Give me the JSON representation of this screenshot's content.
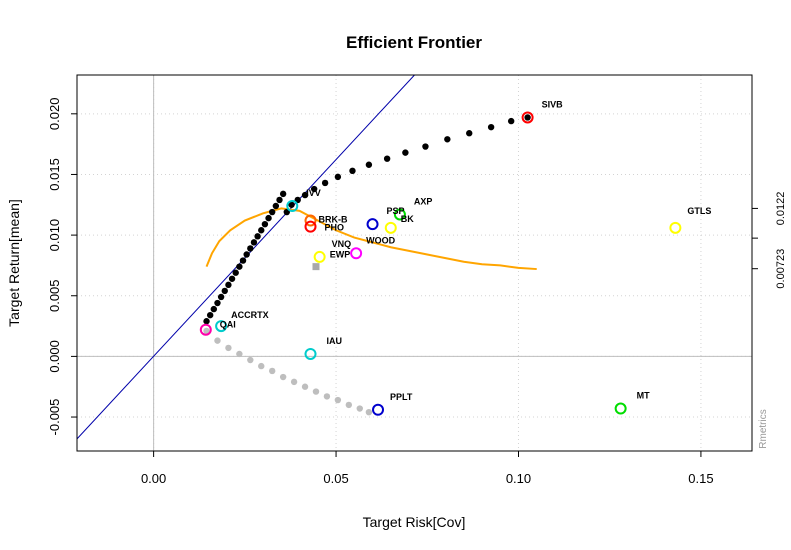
{
  "chart_data": {
    "type": "scatter",
    "title": "Efficient Frontier",
    "xlabel": "Target Risk[Cov]",
    "ylabel": "Target Return[mean]",
    "xlim": [
      -0.021,
      0.164
    ],
    "ylim": [
      -0.0078,
      0.0232
    ],
    "x_ticks": [
      0.0,
      0.05,
      0.1,
      0.15
    ],
    "x_tick_labels": [
      "0.00",
      "0.05",
      "0.10",
      "0.15"
    ],
    "y_ticks": [
      -0.005,
      0.0,
      0.005,
      0.01,
      0.015,
      0.02
    ],
    "y_tick_labels": [
      "-0.005",
      "0.000",
      "0.005",
      "0.010",
      "0.015",
      "0.020"
    ],
    "right_axis_ticks": [
      0.0122,
      0.00975,
      0.00723
    ],
    "right_axis_labels": [
      "0.0122",
      "",
      "0.00723"
    ],
    "credit": "Rmetrics",
    "grid": true,
    "zero_lines": true,
    "tangency_line": {
      "points": [
        [
          -0.021,
          -0.0068
        ],
        [
          0.0715,
          0.0232
        ]
      ],
      "color": "#0000aa"
    },
    "sharpe_ratio_curve": {
      "color": "#ffa500",
      "x": [
        0.0145,
        0.016,
        0.018,
        0.021,
        0.025,
        0.03,
        0.035,
        0.04,
        0.045,
        0.05,
        0.055,
        0.06,
        0.065,
        0.07,
        0.075,
        0.08,
        0.085,
        0.09,
        0.095,
        0.1,
        0.105
      ],
      "y": [
        0.0074,
        0.0085,
        0.0095,
        0.0104,
        0.0112,
        0.0118,
        0.0122,
        0.012,
        0.0112,
        0.0104,
        0.0098,
        0.0094,
        0.009,
        0.0087,
        0.0084,
        0.0081,
        0.0078,
        0.0076,
        0.0075,
        0.0073,
        0.0072
      ]
    },
    "efficient_frontier": {
      "color": "#000000",
      "x": [
        0.0145,
        0.0155,
        0.0165,
        0.0175,
        0.0185,
        0.0195,
        0.0205,
        0.0215,
        0.0225,
        0.0235,
        0.0245,
        0.0255,
        0.0265,
        0.0275,
        0.0285,
        0.0295,
        0.0305,
        0.0315,
        0.0325,
        0.0335,
        0.0345,
        0.0355,
        0.0365,
        0.0378,
        0.0395,
        0.0415,
        0.044,
        0.047,
        0.0505,
        0.0545,
        0.059,
        0.064,
        0.069,
        0.0745,
        0.0805,
        0.0865,
        0.0925,
        0.098,
        0.1025
      ],
      "y": [
        0.0029,
        0.0034,
        0.0039,
        0.0044,
        0.0049,
        0.0054,
        0.0059,
        0.0064,
        0.0069,
        0.0074,
        0.0079,
        0.0084,
        0.0089,
        0.0094,
        0.0099,
        0.0104,
        0.0109,
        0.0114,
        0.0119,
        0.0124,
        0.0129,
        0.0134,
        0.0119,
        0.0125,
        0.0129,
        0.0133,
        0.0138,
        0.0143,
        0.0148,
        0.0153,
        0.0158,
        0.0163,
        0.0168,
        0.0173,
        0.0179,
        0.0184,
        0.0189,
        0.0194,
        0.0197
      ]
    },
    "minimum_variance_locus": {
      "color": "#bebebe",
      "x": [
        0.0145,
        0.0175,
        0.0205,
        0.0235,
        0.0265,
        0.0295,
        0.0325,
        0.0355,
        0.0385,
        0.0415,
        0.0445,
        0.0475,
        0.0505,
        0.0535,
        0.0565,
        0.059
      ],
      "y": [
        0.0021,
        0.0013,
        0.0007,
        0.0002,
        -0.0003,
        -0.0008,
        -0.0012,
        -0.0017,
        -0.0021,
        -0.0025,
        -0.0029,
        -0.0033,
        -0.0036,
        -0.004,
        -0.0043,
        -0.0046
      ]
    },
    "equal_weights_point": {
      "x": 0.0445,
      "y": 0.0074,
      "color": "#a9a9a9"
    },
    "assets": [
      {
        "name": "SIVB",
        "x": 0.1025,
        "y": 0.0197,
        "color": "#ff0000"
      },
      {
        "name": "GTLS",
        "x": 0.143,
        "y": 0.0106,
        "color": "#ffff00"
      },
      {
        "name": "AXP",
        "x": 0.0675,
        "y": 0.0117,
        "color": "#00dd00"
      },
      {
        "name": "PSP",
        "x": 0.06,
        "y": 0.0109,
        "color": "#0000cd"
      },
      {
        "name": "BK",
        "x": 0.065,
        "y": 0.0106,
        "color": "#ffff00"
      },
      {
        "name": "WOOD",
        "x": 0.0555,
        "y": 0.0085,
        "color": "#ff00ff"
      },
      {
        "name": "IVV",
        "x": 0.038,
        "y": 0.0124,
        "color": "#00cccc"
      },
      {
        "name": "BRK-B",
        "x": 0.043,
        "y": 0.0112,
        "color": "#ff6600"
      },
      {
        "name": "PHO",
        "x": 0.043,
        "y": 0.0107,
        "color": "#ff0000"
      },
      {
        "name": "VNQ",
        "x": 0.0455,
        "y": 0.0082,
        "color": "#ffff00"
      },
      {
        "name": "EWP",
        "x": 0.045,
        "y": 0.0074,
        "color": "#bebebe",
        "label_only": true
      },
      {
        "name": "ACCRTX",
        "x": 0.0185,
        "y": 0.0025,
        "color": "#00cccc"
      },
      {
        "name": "QAI",
        "x": 0.0143,
        "y": 0.0022,
        "color": "#ff00aa"
      },
      {
        "name": "IAU",
        "x": 0.043,
        "y": 0.0002,
        "color": "#00cccc"
      },
      {
        "name": "PPLT",
        "x": 0.0615,
        "y": -0.0044,
        "color": "#0000cd"
      },
      {
        "name": "MT",
        "x": 0.128,
        "y": -0.0043,
        "color": "#00dd00"
      }
    ]
  }
}
